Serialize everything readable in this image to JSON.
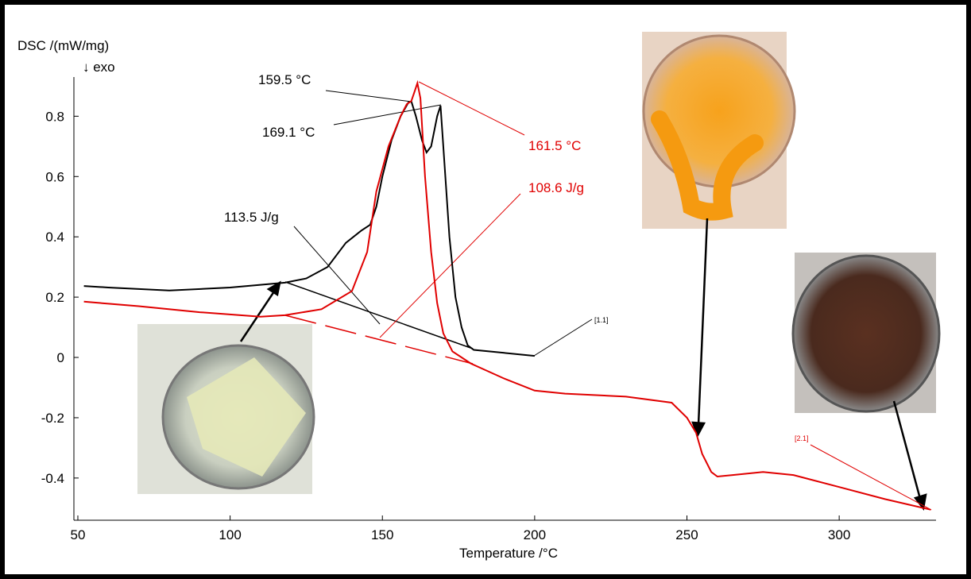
{
  "chart_data": {
    "type": "line",
    "y_label": "DSC /(mW/mg)",
    "y_note": "↓  exo",
    "x_label": "Temperature /°C",
    "xlim": [
      48.7,
      331.8
    ],
    "ylim": [
      -0.54,
      0.93
    ],
    "xticks": [
      50,
      100,
      150,
      200,
      250,
      300
    ],
    "yticks": [
      -0.4,
      -0.2,
      0,
      0.2,
      0.4,
      0.6,
      0.8
    ],
    "annotations": [
      "159.5 °C",
      "169.1 °C",
      "161.5 °C",
      "108.6 J/g",
      "113.5 J/g",
      "[1.1]",
      "[2.1]"
    ],
    "series": [
      {
        "name": "[1.1]",
        "color": "#000000",
        "x": [
          52,
          60,
          80,
          100,
          118,
          125,
          132,
          138,
          143,
          146,
          148,
          150,
          153,
          156,
          158.5,
          159.5,
          161,
          163,
          164.5,
          166,
          168,
          169.1,
          170,
          172,
          174,
          176,
          178,
          180,
          190,
          200
        ],
        "values": [
          0.237,
          0.232,
          0.222,
          0.232,
          0.248,
          0.262,
          0.3,
          0.38,
          0.42,
          0.44,
          0.5,
          0.6,
          0.72,
          0.8,
          0.845,
          0.85,
          0.8,
          0.72,
          0.68,
          0.7,
          0.8,
          0.835,
          0.7,
          0.4,
          0.2,
          0.1,
          0.04,
          0.025,
          0.015,
          0.005
        ]
      },
      {
        "name": "[2.1]",
        "color": "#e00000",
        "x": [
          52,
          70,
          90,
          110,
          118,
          130,
          140,
          145,
          148,
          152,
          156,
          158,
          159.5,
          160.5,
          161.5,
          162.5,
          164,
          166,
          168,
          170,
          173,
          176,
          179,
          190,
          200,
          210,
          230,
          245,
          250,
          253,
          255,
          258,
          260,
          265,
          275,
          285,
          300,
          315,
          330
        ],
        "values": [
          0.185,
          0.17,
          0.15,
          0.135,
          0.14,
          0.16,
          0.22,
          0.35,
          0.55,
          0.7,
          0.8,
          0.84,
          0.85,
          0.88,
          0.91,
          0.86,
          0.6,
          0.35,
          0.18,
          0.08,
          0.02,
          0.0,
          -0.02,
          -0.07,
          -0.11,
          -0.12,
          -0.13,
          -0.15,
          -0.2,
          -0.25,
          -0.32,
          -0.38,
          -0.395,
          -0.39,
          -0.38,
          -0.39,
          -0.43,
          -0.47,
          -0.505
        ]
      }
    ]
  }
}
